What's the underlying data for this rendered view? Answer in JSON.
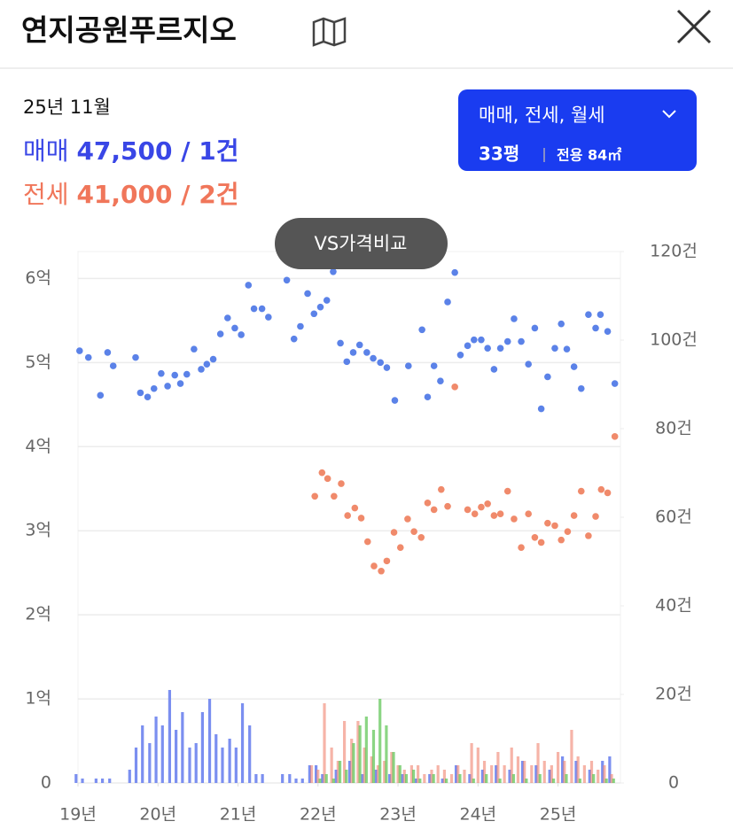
{
  "header": {
    "title": "연지공원푸르지오"
  },
  "summary": {
    "date": "25년 11월",
    "sale_label": "매매",
    "sale_value": "47,500 / 1건",
    "jeonse_label": "전세",
    "jeonse_value": "41,000 / 2건"
  },
  "filter": {
    "types": "매매, 전세, 월세",
    "size": "33평",
    "area": "전용 84㎡"
  },
  "compare_button": "VS가격비교",
  "chart_data": {
    "type": "combo",
    "xlim": [
      2019,
      2025.78
    ],
    "xticks": [
      {
        "value": 2019,
        "label": "19년"
      },
      {
        "value": 2020,
        "label": "20년"
      },
      {
        "value": 2021,
        "label": "21년"
      },
      {
        "value": 2022,
        "label": "22년"
      },
      {
        "value": 2023,
        "label": "23년"
      },
      {
        "value": 2024,
        "label": "24년"
      },
      {
        "value": 2025,
        "label": "25년"
      }
    ],
    "ylim": [
      0,
      6.32
    ],
    "yticks": [
      0,
      {
        "value": 1,
        "label": "1억"
      },
      {
        "value": 2,
        "label": "2억"
      },
      {
        "value": 3,
        "label": "3억"
      },
      {
        "value": 4,
        "label": "4억"
      },
      {
        "value": 5,
        "label": "5억"
      },
      {
        "value": 6,
        "label": "6억"
      }
    ],
    "y2lim": [
      0,
      120
    ],
    "y2ticks": [
      0,
      {
        "value": 20,
        "label": "20건"
      },
      {
        "value": 40,
        "label": "40건"
      },
      {
        "value": 60,
        "label": "60건"
      },
      {
        "value": 80,
        "label": "80건"
      },
      {
        "value": 100,
        "label": "100건"
      },
      {
        "value": 120,
        "label": "120건"
      }
    ],
    "grid": true,
    "series": [
      {
        "type": "bar",
        "axis": "y2",
        "color": "#7b8ff0",
        "x": [
          2019.0,
          2019.08,
          2019.25,
          2019.33,
          2019.42,
          2019.67,
          2019.75,
          2019.83,
          2019.92,
          2020.0,
          2020.08,
          2020.17,
          2020.25,
          2020.33,
          2020.42,
          2020.5,
          2020.58,
          2020.67,
          2020.75,
          2020.83,
          2020.92,
          2021.0,
          2021.08,
          2021.17,
          2021.25,
          2021.33,
          2021.58,
          2021.67,
          2021.75,
          2021.83,
          2021.92,
          2022.0,
          2022.08,
          2022.25,
          2022.42,
          2022.58,
          2022.75,
          2022.92,
          2023.08,
          2023.25,
          2023.42,
          2023.58,
          2023.75,
          2023.92,
          2024.08,
          2024.25,
          2024.42,
          2024.58,
          2024.75,
          2024.92,
          2025.08,
          2025.25,
          2025.42,
          2025.58,
          2025.67
        ],
        "values": [
          2,
          1,
          1,
          1,
          1,
          3,
          8,
          13,
          9,
          15,
          13,
          21,
          12,
          16,
          8,
          9,
          16,
          19,
          11,
          8,
          10,
          8,
          18,
          13,
          2,
          2,
          2,
          2,
          1,
          1,
          4,
          4,
          2,
          3,
          5,
          2,
          3,
          2,
          2,
          1,
          2,
          1,
          4,
          2,
          3,
          4,
          3,
          5,
          4,
          3,
          6,
          5,
          3,
          5,
          6
        ]
      },
      {
        "type": "bar",
        "axis": "y2",
        "color": "rgba(240,130,110,0.6)",
        "x": [
          2021.92,
          2022.0,
          2022.08,
          2022.17,
          2022.25,
          2022.33,
          2022.42,
          2022.5,
          2022.58,
          2022.67,
          2022.75,
          2022.83,
          2022.92,
          2023.0,
          2023.08,
          2023.17,
          2023.25,
          2023.33,
          2023.42,
          2023.5,
          2023.58,
          2023.67,
          2023.75,
          2023.83,
          2023.92,
          2024.0,
          2024.08,
          2024.17,
          2024.25,
          2024.33,
          2024.42,
          2024.5,
          2024.58,
          2024.67,
          2024.75,
          2024.83,
          2024.92,
          2025.0,
          2025.08,
          2025.17,
          2025.25,
          2025.33,
          2025.42,
          2025.5,
          2025.58,
          2025.67
        ],
        "values": [
          4,
          3,
          18,
          8,
          5,
          14,
          10,
          14,
          8,
          6,
          4,
          5,
          7,
          4,
          3,
          4,
          4,
          2,
          3,
          4,
          3,
          2,
          4,
          3,
          9,
          8,
          5,
          4,
          7,
          4,
          8,
          6,
          5,
          4,
          9,
          5,
          4,
          7,
          5,
          12,
          6,
          4,
          5,
          3,
          4,
          2
        ]
      },
      {
        "type": "bar",
        "axis": "y2",
        "color": "rgba(90,195,80,0.7)",
        "x": [
          2022.0,
          2022.08,
          2022.17,
          2022.25,
          2022.33,
          2022.42,
          2022.5,
          2022.58,
          2022.67,
          2022.75,
          2022.83,
          2022.92,
          2023.0,
          2023.08,
          2023.17,
          2023.25,
          2023.42,
          2023.58,
          2023.75,
          2023.92,
          2024.08,
          2024.25,
          2024.42,
          2024.58,
          2024.75,
          2024.92,
          2025.08,
          2025.25,
          2025.42,
          2025.58,
          2025.67
        ],
        "values": [
          1,
          2,
          1,
          5,
          3,
          9,
          13,
          15,
          12,
          19,
          13,
          7,
          4,
          2,
          3,
          1,
          2,
          1,
          2,
          1,
          2,
          1,
          2,
          1,
          2,
          1,
          2,
          1,
          2,
          1,
          1
        ]
      },
      {
        "type": "line",
        "color": "#5b82e8",
        "x": [
          2019.02,
          2019.13,
          2019.28,
          2019.37,
          2019.44,
          2019.72,
          2019.78,
          2019.87,
          2019.95,
          2020.04,
          2020.12,
          2020.21,
          2020.28,
          2020.36,
          2020.45,
          2020.54,
          2020.61,
          2020.69,
          2020.78,
          2020.87,
          2020.96,
          2021.04,
          2021.13,
          2021.2,
          2021.3,
          2021.38,
          2021.61,
          2021.7,
          2021.78,
          2021.87,
          2021.95,
          2022.03,
          2022.11,
          2022.19,
          2022.28,
          2022.36,
          2022.44,
          2022.52,
          2022.61,
          2022.69,
          2022.78,
          2022.86,
          2022.96,
          2023.13,
          2023.3,
          2023.37,
          2023.45,
          2023.53,
          2023.62,
          2023.71,
          2023.78,
          2023.87,
          2023.95,
          2024.04,
          2024.12,
          2024.2,
          2024.28,
          2024.37,
          2024.45,
          2024.54,
          2024.63,
          2024.71,
          2024.79,
          2024.87,
          2024.96,
          2025.04,
          2025.11,
          2025.2,
          2025.29,
          2025.38,
          2025.47,
          2025.53,
          2025.62,
          2025.71
        ],
        "values": [
          5.14,
          5.06,
          4.61,
          5.12,
          4.96,
          5.06,
          4.64,
          4.59,
          4.69,
          4.87,
          4.72,
          4.85,
          4.75,
          4.86,
          5.16,
          4.92,
          4.98,
          5.04,
          5.34,
          5.53,
          5.41,
          5.33,
          5.92,
          5.64,
          5.64,
          5.54,
          5.98,
          5.28,
          5.43,
          5.82,
          5.58,
          5.66,
          5.74,
          6.08,
          5.23,
          5.01,
          5.12,
          5.21,
          5.12,
          5.05,
          5.0,
          4.94,
          4.55,
          4.96,
          5.39,
          4.59,
          4.96,
          4.78,
          5.72,
          6.07,
          5.09,
          5.2,
          5.27,
          5.27,
          5.17,
          4.92,
          5.17,
          5.25,
          5.52,
          5.25,
          4.98,
          5.41,
          4.45,
          4.83,
          5.17,
          5.46,
          5.16,
          4.95,
          4.69,
          5.57,
          5.41,
          5.57,
          5.37,
          4.75
        ]
      },
      {
        "type": "line",
        "color": "#f08a6b",
        "x": [
          2021.96,
          2022.05,
          2022.12,
          2022.2,
          2022.29,
          2022.37,
          2022.46,
          2022.54,
          2022.62,
          2022.7,
          2022.79,
          2022.86,
          2022.95,
          2023.03,
          2023.12,
          2023.2,
          2023.29,
          2023.37,
          2023.45,
          2023.54,
          2023.62,
          2023.71,
          2023.87,
          2023.96,
          2024.04,
          2024.12,
          2024.2,
          2024.28,
          2024.37,
          2024.45,
          2024.54,
          2024.63,
          2024.71,
          2024.79,
          2024.87,
          2024.96,
          2025.04,
          2025.12,
          2025.2,
          2025.29,
          2025.38,
          2025.47,
          2025.54,
          2025.62,
          2025.71
        ],
        "values": [
          3.41,
          3.69,
          3.62,
          3.41,
          3.56,
          3.18,
          3.27,
          3.15,
          2.87,
          2.58,
          2.52,
          2.64,
          2.98,
          2.8,
          3.14,
          2.99,
          2.92,
          3.33,
          3.25,
          3.49,
          3.29,
          4.71,
          3.25,
          3.2,
          3.28,
          3.32,
          3.18,
          3.2,
          3.47,
          3.14,
          2.8,
          3.2,
          2.92,
          2.86,
          3.09,
          3.06,
          2.89,
          2.99,
          3.18,
          3.47,
          2.94,
          3.17,
          3.49,
          3.45,
          4.12
        ]
      }
    ]
  }
}
